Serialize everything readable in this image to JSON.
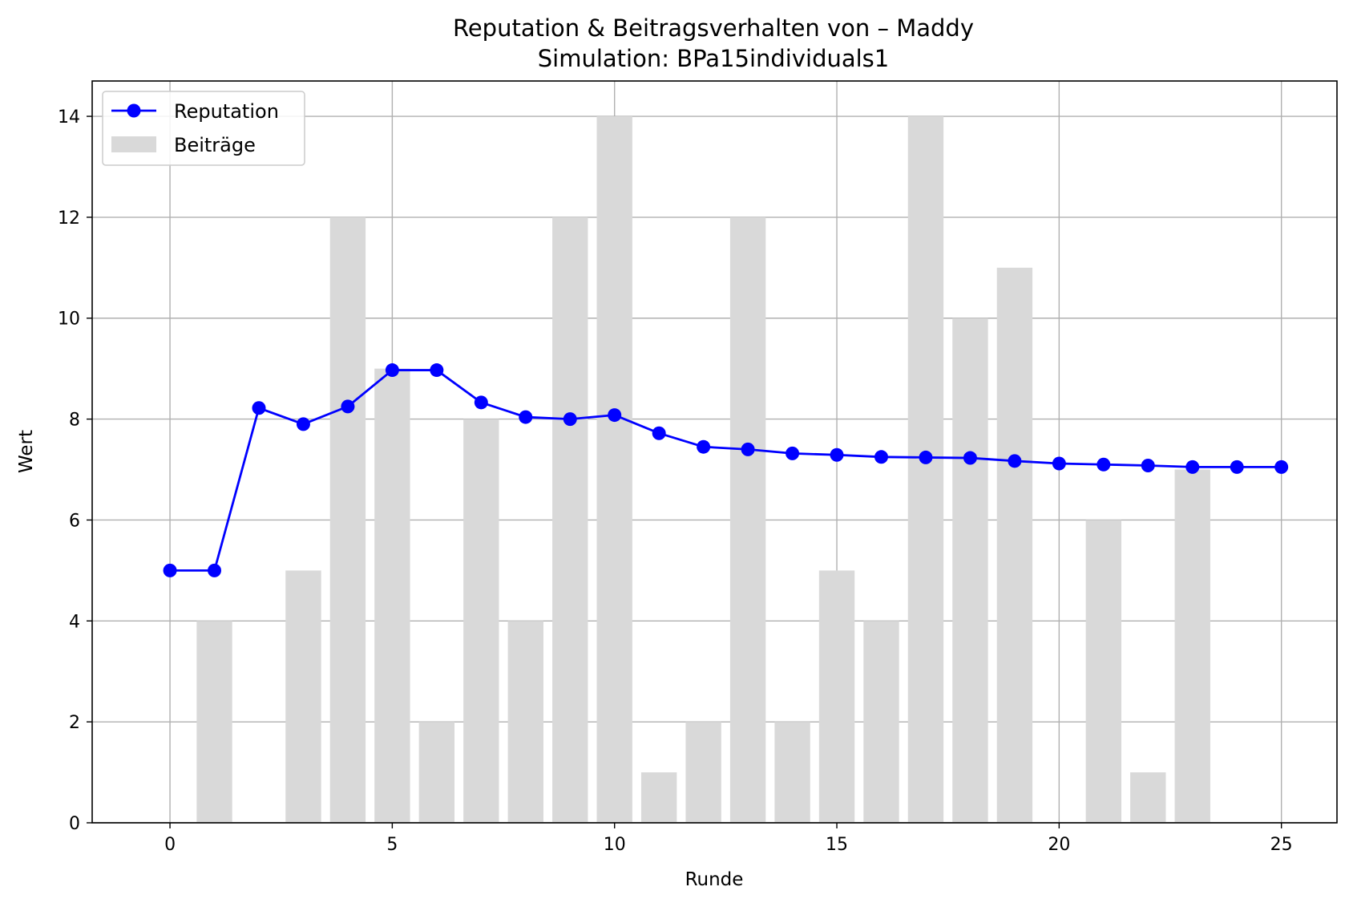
{
  "chart_data": {
    "type": "bar+line",
    "title": "Reputation & Beitragsverhalten von – Maddy",
    "subtitle": "Simulation: BPa15individuals1",
    "xlabel": "Runde",
    "ylabel": "Wert",
    "xlim": [
      -1.75,
      26.25
    ],
    "ylim": [
      0,
      14.7
    ],
    "xticks": [
      0,
      5,
      10,
      15,
      20,
      25
    ],
    "yticks": [
      0,
      2,
      4,
      6,
      8,
      10,
      12,
      14
    ],
    "grid": true,
    "legend_position": "top-left",
    "bar_series": {
      "name": "Beiträge",
      "color": "#d9d9d9",
      "x": [
        1,
        3,
        4,
        5,
        6,
        7,
        8,
        9,
        10,
        11,
        12,
        13,
        14,
        15,
        16,
        17,
        18,
        19,
        21,
        22,
        23
      ],
      "values": [
        4,
        5,
        12,
        9,
        2,
        8,
        4,
        12,
        14,
        1,
        2,
        12,
        2,
        5,
        4,
        14,
        10,
        11,
        6,
        1,
        7
      ]
    },
    "line_series": {
      "name": "Reputation",
      "color": "#0000ff",
      "x": [
        0,
        1,
        2,
        3,
        4,
        5,
        6,
        7,
        8,
        9,
        10,
        11,
        12,
        13,
        14,
        15,
        16,
        17,
        18,
        19,
        20,
        21,
        22,
        23,
        24,
        25
      ],
      "values": [
        5.0,
        5.0,
        8.22,
        7.9,
        8.25,
        8.97,
        8.97,
        8.33,
        8.04,
        8.0,
        8.08,
        7.72,
        7.45,
        7.4,
        7.32,
        7.29,
        7.25,
        7.24,
        7.23,
        7.17,
        7.12,
        7.1,
        7.08,
        7.05,
        7.05,
        7.05
      ]
    }
  }
}
